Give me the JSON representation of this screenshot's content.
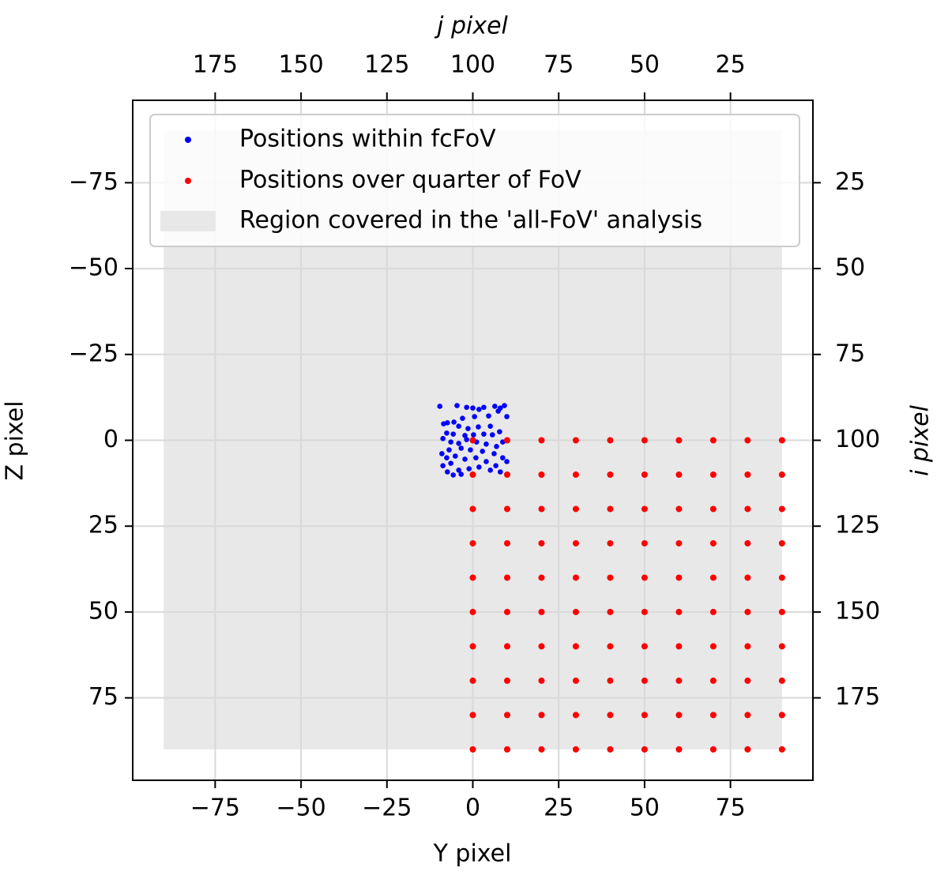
{
  "chart_data": {
    "type": "scatter",
    "xlabel": "Y pixel",
    "ylabel": "Z pixel",
    "x2label": "j pixel",
    "y2label": "i pixel",
    "xlim": [
      -99,
      99
    ],
    "ylim": [
      99,
      -99
    ],
    "x2lim": [
      199,
      1
    ],
    "y2lim": [
      199,
      1
    ],
    "xticks": [
      {
        "value": -75,
        "label": "−75"
      },
      {
        "value": -50,
        "label": "−50"
      },
      {
        "value": -25,
        "label": "−25"
      },
      0,
      25,
      50,
      75
    ],
    "yticks": [
      {
        "value": -75,
        "label": "−75"
      },
      {
        "value": -50,
        "label": "−50"
      },
      {
        "value": -25,
        "label": "−25"
      },
      0,
      25,
      50,
      75
    ],
    "x2ticks": [
      25,
      50,
      75,
      100,
      125,
      150,
      175
    ],
    "y2ticks": [
      25,
      50,
      75,
      100,
      125,
      150,
      175
    ],
    "grid": true,
    "legend": "upper left",
    "region": {
      "name": "Region covered in the 'all-FoV' analysis",
      "color": "#e8e8e8",
      "x": [
        -90,
        90
      ],
      "y": [
        -90,
        90
      ]
    },
    "series": [
      {
        "name": "Positions within fcFoV",
        "color": "#0000ff",
        "x": [
          -9.6,
          -4.6,
          -1.8,
          0,
          1.8,
          3.2,
          6.4,
          8,
          9.2,
          9.9,
          7.4,
          4.6,
          0.5,
          -3,
          -5.5,
          -7.4,
          -8.5,
          -4.1,
          -1.4,
          1.6,
          5.1,
          7.8,
          5.7,
          3.2,
          0.2,
          -2.3,
          -5.7,
          -7.6,
          -8.7,
          -6.4,
          -4.1,
          -1.8,
          1.1,
          3.9,
          6.9,
          8.7,
          9.9,
          8.7,
          6.2,
          2.8,
          -0.7,
          -3.4,
          -6.9,
          -9,
          -7.6,
          -5.1,
          -2.3,
          0.9,
          3.9,
          6.7,
          8,
          5.1,
          1.8,
          -1.1,
          -4.1,
          -7.4,
          -5.7,
          -3.4,
          -8.7,
          -6.4
        ],
        "y": [
          -9.9,
          -10.1,
          -9.6,
          -9.4,
          -9,
          -9.6,
          -9.9,
          -9.4,
          -10.1,
          -6.9,
          -8.5,
          -7.1,
          -6.9,
          -6.4,
          -5.3,
          -5.1,
          -4.8,
          -4.1,
          -3.4,
          -3.9,
          -4.1,
          -2.5,
          -1.6,
          -1.8,
          -1.6,
          -1.4,
          -1.8,
          -2.1,
          -0.5,
          0.5,
          0.9,
          -0.2,
          0.5,
          1.1,
          1.8,
          0.5,
          6.2,
          5.1,
          3.9,
          3.2,
          2.8,
          2.3,
          2.8,
          3.9,
          5.1,
          4.6,
          5.5,
          5.1,
          6.2,
          7.4,
          9.2,
          8.7,
          7.8,
          8.3,
          8.7,
          9.2,
          10.1,
          9.9,
          7.4,
          6.7
        ]
      },
      {
        "name": "Positions over quarter of FoV",
        "color": "#ff0000",
        "x": [
          0,
          10,
          20,
          30,
          40,
          50,
          60,
          70,
          80,
          90,
          0,
          10,
          20,
          30,
          40,
          50,
          60,
          70,
          80,
          90,
          0,
          10,
          20,
          30,
          40,
          50,
          60,
          70,
          80,
          90,
          0,
          10,
          20,
          30,
          40,
          50,
          60,
          70,
          80,
          90,
          0,
          10,
          20,
          30,
          40,
          50,
          60,
          70,
          80,
          90,
          0,
          10,
          20,
          30,
          40,
          50,
          60,
          70,
          80,
          90,
          0,
          10,
          20,
          30,
          40,
          50,
          60,
          70,
          80,
          90,
          0,
          10,
          20,
          30,
          40,
          50,
          60,
          70,
          80,
          90,
          0,
          10,
          20,
          30,
          40,
          50,
          60,
          70,
          80,
          90,
          0,
          10,
          20,
          30,
          40,
          50,
          60,
          70,
          80,
          90
        ],
        "y": [
          0,
          0,
          0,
          0,
          0,
          0,
          0,
          0,
          0,
          0,
          10,
          10,
          10,
          10,
          10,
          10,
          10,
          10,
          10,
          10,
          20,
          20,
          20,
          20,
          20,
          20,
          20,
          20,
          20,
          20,
          30,
          30,
          30,
          30,
          30,
          30,
          30,
          30,
          30,
          30,
          40,
          40,
          40,
          40,
          40,
          40,
          40,
          40,
          40,
          40,
          50,
          50,
          50,
          50,
          50,
          50,
          50,
          50,
          50,
          50,
          60,
          60,
          60,
          60,
          60,
          60,
          60,
          60,
          60,
          60,
          70,
          70,
          70,
          70,
          70,
          70,
          70,
          70,
          70,
          70,
          80,
          80,
          80,
          80,
          80,
          80,
          80,
          80,
          80,
          80,
          90,
          90,
          90,
          90,
          90,
          90,
          90,
          90,
          90,
          90
        ]
      }
    ]
  }
}
